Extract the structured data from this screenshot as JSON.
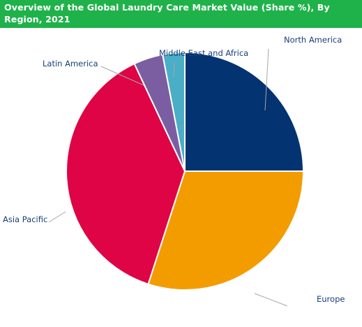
{
  "chart_data": {
    "type": "pie",
    "title": "Overview of the Global Laundry Care Market Value (Share %), By Region, 2021",
    "categories": [
      "North America",
      "Europe",
      "Asia Pacific",
      "Latin America",
      "Middle East and Africa"
    ],
    "values": [
      25.0,
      30.0,
      38.0,
      4.0,
      3.0
    ],
    "colors": [
      "#033370",
      "#f39c00",
      "#de0445",
      "#7b5ea1",
      "#4aaec6"
    ],
    "legend": "none (labels with leader lines)"
  }
}
